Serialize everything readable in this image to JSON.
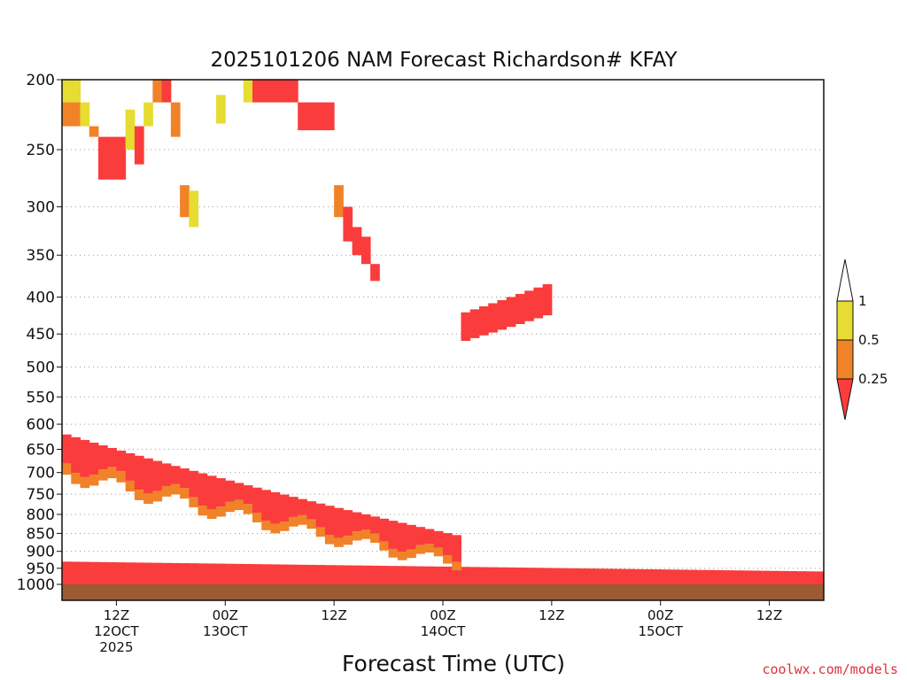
{
  "chart_data": {
    "type": "heatmap",
    "title": "2025101206 NAM Forecast Richardson# KFAY",
    "xlabel": "Forecast Time (UTC)",
    "ylabel": "",
    "credit": "coolwx.com/models",
    "y_ticks": [
      "200",
      "250",
      "300",
      "350",
      "400",
      "450",
      "500",
      "550",
      "600",
      "650",
      "700",
      "750",
      "800",
      "850",
      "900",
      "950",
      "1000"
    ],
    "y_axis": "pressure (hPa), log scale, 1000 at bottom",
    "ylim": [
      200,
      1000
    ],
    "x_ticks": [
      {
        "line1": "12Z",
        "line2": "12OCT",
        "line3": "2025"
      },
      {
        "line1": "00Z",
        "line2": "13OCT",
        "line3": ""
      },
      {
        "line1": "12Z",
        "line2": "",
        "line3": ""
      },
      {
        "line1": "00Z",
        "line2": "14OCT",
        "line3": ""
      },
      {
        "line1": "12Z",
        "line2": "",
        "line3": ""
      },
      {
        "line1": "00Z",
        "line2": "15OCT",
        "line3": ""
      },
      {
        "line1": "12Z",
        "line2": "",
        "line3": ""
      }
    ],
    "x_tick_hours": [
      6,
      18,
      30,
      42,
      54,
      66,
      78
    ],
    "xlim_hours": [
      0,
      84
    ],
    "legend": {
      "labels": [
        "1",
        "0.5",
        "0.25"
      ],
      "bins": [
        {
          "range": "> 1",
          "color": "#ffffff"
        },
        {
          "range": "0.5 - 1",
          "color": "#e6dc32"
        },
        {
          "range": "0.25 - 0.5",
          "color": "#f08228"
        },
        {
          "range": "< 0.25",
          "color": "#fa3c3c"
        }
      ]
    },
    "ground_color": "#9b5a32",
    "grid": "dotted horizontal lines at pressure levels",
    "cells": [
      {
        "t": 0,
        "p1": 200,
        "p2": 215,
        "v": 0.7
      },
      {
        "t": 1,
        "p1": 200,
        "p2": 215,
        "v": 0.7
      },
      {
        "t": 0,
        "p1": 215,
        "p2": 232,
        "v": 0.4
      },
      {
        "t": 1,
        "p1": 215,
        "p2": 232,
        "v": 0.4
      },
      {
        "t": 2,
        "p1": 215,
        "p2": 232,
        "v": 0.6
      },
      {
        "t": 3,
        "p1": 232,
        "p2": 240,
        "v": 0.4
      },
      {
        "t": 4,
        "p1": 240,
        "p2": 275,
        "v": 0.2
      },
      {
        "t": 5,
        "p1": 240,
        "p2": 275,
        "v": 0.2
      },
      {
        "t": 6,
        "p1": 240,
        "p2": 275,
        "v": 0.2
      },
      {
        "t": 7,
        "p1": 220,
        "p2": 250,
        "v": 0.7
      },
      {
        "t": 8,
        "p1": 232,
        "p2": 262,
        "v": 0.2
      },
      {
        "t": 9,
        "p1": 215,
        "p2": 232,
        "v": 0.6
      },
      {
        "t": 10,
        "p1": 200,
        "p2": 215,
        "v": 0.3
      },
      {
        "t": 11,
        "p1": 200,
        "p2": 215,
        "v": 0.2
      },
      {
        "t": 12,
        "p1": 215,
        "p2": 240,
        "v": 0.4
      },
      {
        "t": 13,
        "p1": 280,
        "p2": 310,
        "v": 0.4
      },
      {
        "t": 14,
        "p1": 285,
        "p2": 320,
        "v": 0.7
      },
      {
        "t": 17,
        "p1": 210,
        "p2": 230,
        "v": 0.7
      },
      {
        "t": 20,
        "p1": 200,
        "p2": 215,
        "v": 0.7
      },
      {
        "t": 21,
        "p1": 200,
        "p2": 215,
        "v": 0.2
      },
      {
        "t": 22,
        "p1": 200,
        "p2": 215,
        "v": 0.2
      },
      {
        "t": 23,
        "p1": 200,
        "p2": 215,
        "v": 0.2
      },
      {
        "t": 24,
        "p1": 200,
        "p2": 215,
        "v": 0.2
      },
      {
        "t": 25,
        "p1": 200,
        "p2": 215,
        "v": 0.2
      },
      {
        "t": 26,
        "p1": 215,
        "p2": 235,
        "v": 0.2
      },
      {
        "t": 27,
        "p1": 215,
        "p2": 235,
        "v": 0.2
      },
      {
        "t": 28,
        "p1": 215,
        "p2": 235,
        "v": 0.2
      },
      {
        "t": 29,
        "p1": 215,
        "p2": 235,
        "v": 0.2
      },
      {
        "t": 30,
        "p1": 280,
        "p2": 310,
        "v": 0.4
      },
      {
        "t": 31,
        "p1": 300,
        "p2": 335,
        "v": 0.2
      },
      {
        "t": 32,
        "p1": 320,
        "p2": 350,
        "v": 0.2
      },
      {
        "t": 33,
        "p1": 330,
        "p2": 360,
        "v": 0.2
      },
      {
        "t": 34,
        "p1": 360,
        "p2": 380,
        "v": 0.2
      }
    ],
    "layers": [
      {
        "name": "boundary layer",
        "t_start": 0,
        "t_end": 84,
        "p_top_start": 930,
        "p_top_end": 960,
        "v": 0.2
      },
      {
        "name": "descending inversion",
        "t_start": 0,
        "t_end": 44,
        "p_top_start": 620,
        "p_top_end": 860,
        "v": 0.2
      },
      {
        "name": "mid-level band",
        "t_start": 44,
        "t_end": 54,
        "p_top_start": 420,
        "p_top_end": 380,
        "v": 0.2
      }
    ]
  }
}
